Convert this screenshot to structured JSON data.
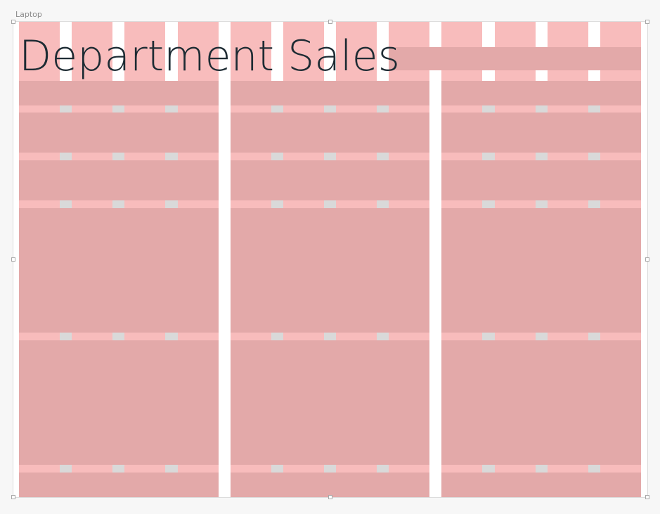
{
  "frame": {
    "label": "Laptop"
  },
  "page": {
    "title": "Department Sales"
  },
  "colors": {
    "column": "#f8bcbc",
    "gutter": "#d9d9d9",
    "title": "#1d2b33",
    "block": "#e3a9a9"
  },
  "grid": {
    "columns": 12
  }
}
